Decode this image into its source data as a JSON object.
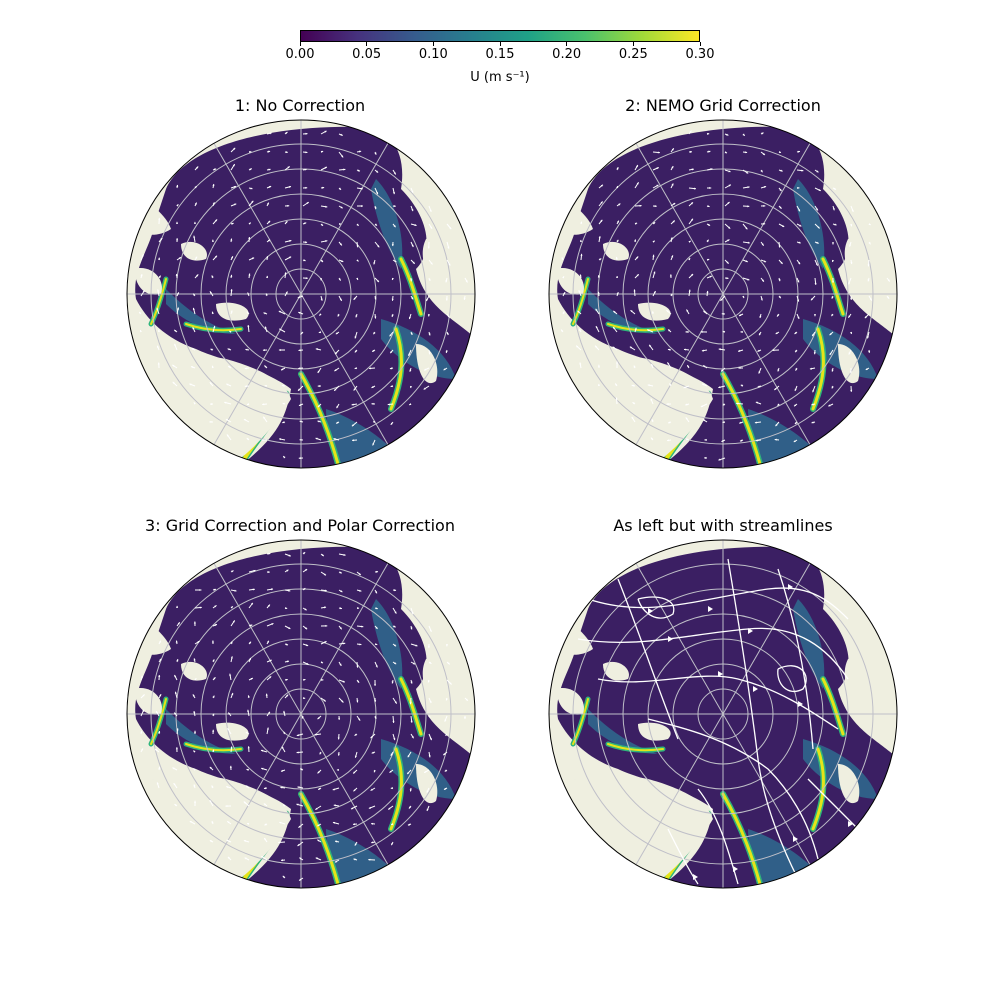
{
  "colorbar": {
    "label": "U (m s⁻¹)",
    "ticks": [
      "0.00",
      "0.05",
      "0.10",
      "0.15",
      "0.20",
      "0.25",
      "0.30"
    ],
    "vmin": 0.0,
    "vmax": 0.3,
    "colormap": "viridis"
  },
  "panels": [
    {
      "title": "1: No Correction",
      "overlay": "quiver"
    },
    {
      "title": "2: NEMO Grid Correction",
      "overlay": "quiver"
    },
    {
      "title": "3: Grid Correction and Polar Correction",
      "overlay": "quiver"
    },
    {
      "title": "As left but with streamlines",
      "overlay": "streamlines"
    }
  ],
  "colors": {
    "land": "#efefe0",
    "ocean_low": "#3b1f63",
    "ocean_mid": "#2f6b8e",
    "ocean_high": "#2fb47c",
    "strong_current": "#e5e419",
    "vector": "#ffffff",
    "gridline": "#bfbfc8"
  }
}
